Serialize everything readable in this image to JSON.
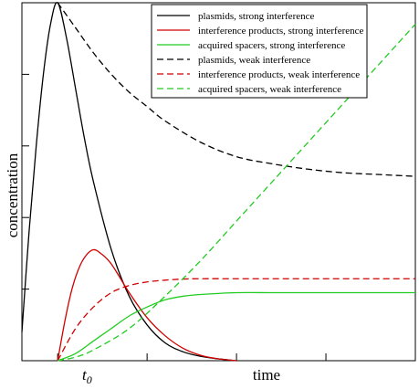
{
  "chart_data": {
    "type": "line",
    "xlabel": "time",
    "ylabel": "concentration",
    "xtick_label": "t",
    "xtick_subscript": "0",
    "xlim": [
      -1,
      10
    ],
    "ylim": [
      0,
      1.0
    ],
    "grid": false,
    "legend_position": "top-right",
    "series": [
      {
        "name": "plasmids, strong interference",
        "color": "#000000",
        "dash": "solid",
        "x": [
          -1,
          -0.8,
          -0.6,
          -0.4,
          -0.2,
          0,
          0.25,
          0.5,
          0.75,
          1,
          1.5,
          2,
          2.5,
          3,
          3.5,
          4,
          4.5,
          5
        ],
        "y": [
          0.08,
          0.36,
          0.6,
          0.8,
          0.94,
          1.0,
          0.9,
          0.76,
          0.62,
          0.5,
          0.31,
          0.18,
          0.1,
          0.05,
          0.025,
          0.012,
          0.005,
          0.0
        ]
      },
      {
        "name": "interference products, strong interference",
        "color": "#d00000",
        "dash": "solid",
        "x": [
          0,
          0.2,
          0.4,
          0.6,
          0.8,
          1,
          1.2,
          1.5,
          2,
          2.5,
          3,
          3.5,
          4,
          4.5,
          5
        ],
        "y": [
          0.0,
          0.11,
          0.2,
          0.26,
          0.295,
          0.31,
          0.3,
          0.27,
          0.19,
          0.12,
          0.07,
          0.035,
          0.015,
          0.005,
          0.0
        ]
      },
      {
        "name": "acquired spacers, strong interference",
        "color": "#22cc22",
        "dash": "solid",
        "x": [
          0,
          0.5,
          1,
          1.5,
          2,
          2.5,
          3,
          3.5,
          4,
          5,
          6,
          7,
          8,
          9,
          10
        ],
        "y": [
          0.0,
          0.02,
          0.055,
          0.09,
          0.125,
          0.15,
          0.17,
          0.18,
          0.185,
          0.19,
          0.19,
          0.19,
          0.19,
          0.19,
          0.19
        ]
      },
      {
        "name": "plasmids, weak interference",
        "color": "#000000",
        "dash": "dashed",
        "x": [
          0,
          0.5,
          1,
          1.5,
          2,
          2.5,
          3,
          4,
          5,
          6,
          7,
          8,
          9,
          10
        ],
        "y": [
          1.0,
          0.93,
          0.86,
          0.8,
          0.75,
          0.71,
          0.67,
          0.61,
          0.57,
          0.55,
          0.535,
          0.525,
          0.52,
          0.515
        ]
      },
      {
        "name": "interference products, weak interference",
        "color": "#d00000",
        "dash": "dashed",
        "x": [
          0,
          0.5,
          1,
          1.5,
          2,
          2.5,
          3,
          3.5,
          4,
          5,
          6,
          7,
          8,
          9,
          10
        ],
        "y": [
          0.0,
          0.09,
          0.15,
          0.19,
          0.21,
          0.22,
          0.225,
          0.228,
          0.229,
          0.229,
          0.229,
          0.229,
          0.229,
          0.229,
          0.229
        ]
      },
      {
        "name": "acquired spacers, weak interference",
        "color": "#22cc22",
        "dash": "dashed",
        "x": [
          0,
          0.5,
          1,
          2,
          3,
          4,
          5,
          6,
          7,
          8,
          9,
          10
        ],
        "y": [
          0.0,
          0.01,
          0.03,
          0.09,
          0.18,
          0.28,
          0.39,
          0.5,
          0.61,
          0.72,
          0.83,
          0.94
        ]
      }
    ]
  }
}
